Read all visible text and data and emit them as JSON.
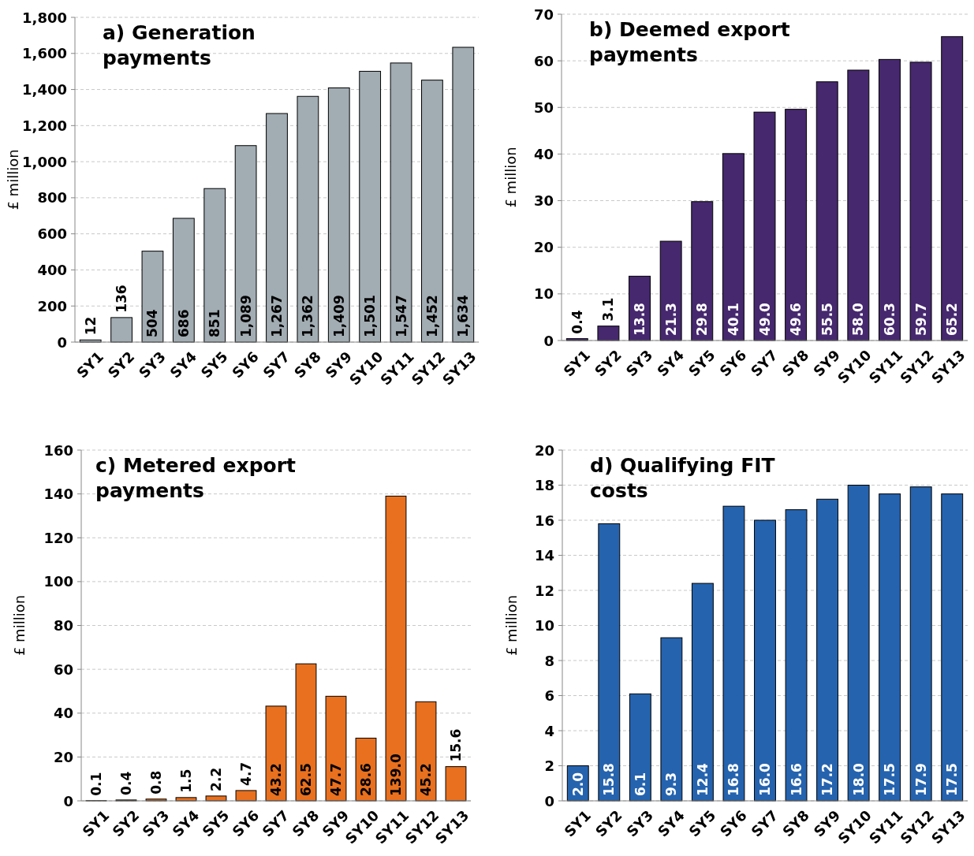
{
  "chart_data": [
    {
      "type": "bar",
      "title": "a) Generation payments",
      "ylabel": "£ million",
      "categories": [
        "SY1",
        "SY2",
        "SY3",
        "SY4",
        "SY5",
        "SY6",
        "SY7",
        "SY8",
        "SY9",
        "SY10",
        "SY11",
        "SY12",
        "SY13"
      ],
      "color": "#a2acb3",
      "values": [
        12,
        136,
        504,
        686,
        851,
        1089,
        1267,
        1362,
        1409,
        1501,
        1547,
        1452,
        1634
      ],
      "value_labels": [
        "12",
        "136",
        "504",
        "686",
        "851",
        "1,089",
        "1,267",
        "1,362",
        "1,409",
        "1,501",
        "1,547",
        "1,452",
        "1,634"
      ],
      "ylim": [
        0,
        1800
      ],
      "yticks": [
        0,
        200,
        400,
        600,
        800,
        {
          "value": 1000,
          "label": "1,000"
        },
        {
          "value": 1200,
          "label": "1,200"
        },
        {
          "value": 1400,
          "label": "1,400"
        },
        {
          "value": 1600,
          "label": "1,600"
        },
        {
          "value": 1800,
          "label": "1,800"
        }
      ],
      "grid": "y"
    },
    {
      "type": "bar",
      "title": "b) Deemed export payments",
      "ylabel": "£ million",
      "categories": [
        "SY1",
        "SY2",
        "SY3",
        "SY4",
        "SY5",
        "SY6",
        "SY7",
        "SY8",
        "SY9",
        "SY10",
        "SY11",
        "SY12",
        "SY13"
      ],
      "color": "#46286e",
      "values": [
        0.4,
        3.1,
        13.8,
        21.3,
        29.8,
        40.1,
        49.0,
        49.6,
        55.5,
        58.0,
        60.3,
        59.7,
        65.2
      ],
      "value_labels": [
        "0.4",
        "3.1",
        "13.8",
        "21.3",
        "29.8",
        "40.1",
        "49.0",
        "49.6",
        "55.5",
        "58.0",
        "60.3",
        "59.7",
        "65.2"
      ],
      "ylim": [
        0,
        70
      ],
      "yticks": [
        0,
        10,
        20,
        30,
        40,
        50,
        60,
        70
      ],
      "grid": "y"
    },
    {
      "type": "bar",
      "title": "c) Metered export payments",
      "ylabel": "£ million",
      "categories": [
        "SY1",
        "SY2",
        "SY3",
        "SY4",
        "SY5",
        "SY6",
        "SY7",
        "SY8",
        "SY9",
        "SY10",
        "SY11",
        "SY12",
        "SY13"
      ],
      "color": "#e8701e",
      "values": [
        0.1,
        0.4,
        0.8,
        1.5,
        2.2,
        4.7,
        43.2,
        62.5,
        47.7,
        28.6,
        139.0,
        45.2,
        15.6
      ],
      "value_labels": [
        "0.1",
        "0.4",
        "0.8",
        "1.5",
        "2.2",
        "4.7",
        "43.2",
        "62.5",
        "47.7",
        "28.6",
        "139.0",
        "45.2",
        "15.6"
      ],
      "ylim": [
        0,
        160
      ],
      "yticks": [
        0,
        20,
        40,
        60,
        80,
        100,
        120,
        140,
        160
      ],
      "grid": "y"
    },
    {
      "type": "bar",
      "title": "d) Qualifying FIT costs",
      "ylabel": "£ million",
      "categories": [
        "SY1",
        "SY2",
        "SY3",
        "SY4",
        "SY5",
        "SY6",
        "SY7",
        "SY8",
        "SY9",
        "SY10",
        "SY11",
        "SY12",
        "SY13"
      ],
      "color": "#2563ae",
      "values": [
        2.0,
        15.8,
        6.1,
        9.3,
        12.4,
        16.8,
        16.0,
        16.6,
        17.2,
        18.0,
        17.5,
        17.9,
        17.5
      ],
      "value_labels": [
        "2.0",
        "15.8",
        "6.1",
        "9.3",
        "12.4",
        "16.8",
        "16.0",
        "16.6",
        "17.2",
        "18.0",
        "17.5",
        "17.9",
        "17.5"
      ],
      "ylim": [
        0,
        20
      ],
      "yticks": [
        0,
        2,
        4,
        6,
        8,
        10,
        12,
        14,
        16,
        18,
        20
      ],
      "grid": "y"
    }
  ]
}
